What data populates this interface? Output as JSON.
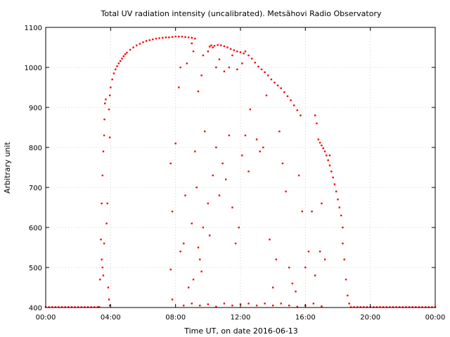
{
  "chart_data": {
    "type": "scatter",
    "title": "Total UV radiation intensity (uncalibrated). Metsähovi Radio Observatory",
    "xlabel": "Time UT, on date 2016-06-13",
    "ylabel": "Arbitrary unit",
    "xlim": [
      0,
      24
    ],
    "ylim": [
      400,
      1100
    ],
    "x_ticks": [
      {
        "value": 0,
        "label": "00:00"
      },
      {
        "value": 4,
        "label": "04:00"
      },
      {
        "value": 8,
        "label": "08:00"
      },
      {
        "value": 12,
        "label": "12:00"
      },
      {
        "value": 16,
        "label": "16:00"
      },
      {
        "value": 20,
        "label": "20:00"
      },
      {
        "value": 24,
        "label": "00:00"
      }
    ],
    "y_ticks": [
      {
        "value": 400,
        "label": "400"
      },
      {
        "value": 500,
        "label": "500"
      },
      {
        "value": 600,
        "label": "600"
      },
      {
        "value": 700,
        "label": "700"
      },
      {
        "value": 800,
        "label": "800"
      },
      {
        "value": 900,
        "label": "900"
      },
      {
        "value": 1000,
        "label": "1000"
      },
      {
        "value": 1100,
        "label": "1100"
      }
    ],
    "grid": true,
    "marker_color": "#ff0000",
    "series": [
      {
        "points": [
          [
            0.0,
            401
          ],
          [
            0.2,
            401
          ],
          [
            0.4,
            401
          ],
          [
            0.6,
            401
          ],
          [
            0.8,
            401
          ],
          [
            1.0,
            401
          ],
          [
            1.2,
            401
          ],
          [
            1.4,
            401
          ],
          [
            1.6,
            401
          ],
          [
            1.8,
            401
          ],
          [
            2.0,
            401
          ],
          [
            2.2,
            401
          ],
          [
            2.4,
            401
          ],
          [
            2.6,
            401
          ],
          [
            2.8,
            401
          ],
          [
            3.0,
            401
          ],
          [
            3.2,
            401
          ],
          [
            3.3,
            401
          ],
          [
            3.35,
            470
          ],
          [
            3.4,
            570
          ],
          [
            3.45,
            660
          ],
          [
            3.5,
            730
          ],
          [
            3.55,
            790
          ],
          [
            3.6,
            830
          ],
          [
            3.62,
            870
          ],
          [
            3.65,
            910
          ],
          [
            3.7,
            920
          ],
          [
            3.45,
            520
          ],
          [
            3.5,
            500
          ],
          [
            3.55,
            480
          ],
          [
            3.6,
            560
          ],
          [
            3.75,
            610
          ],
          [
            3.8,
            660
          ],
          [
            3.85,
            450
          ],
          [
            3.9,
            420
          ],
          [
            3.95,
            405
          ],
          [
            3.9,
            895
          ],
          [
            3.95,
            930
          ],
          [
            4.0,
            950
          ],
          [
            4.1,
            970
          ],
          [
            4.2,
            985
          ],
          [
            4.3,
            995
          ],
          [
            4.4,
            1003
          ],
          [
            4.5,
            1010
          ],
          [
            4.6,
            1016
          ],
          [
            4.7,
            1022
          ],
          [
            4.8,
            1028
          ],
          [
            4.9,
            1033
          ],
          [
            5.0,
            1037
          ],
          [
            5.2,
            1044
          ],
          [
            5.4,
            1050
          ],
          [
            5.6,
            1055
          ],
          [
            5.8,
            1059
          ],
          [
            6.0,
            1063
          ],
          [
            6.2,
            1066
          ],
          [
            6.4,
            1068
          ],
          [
            6.6,
            1070
          ],
          [
            6.8,
            1072
          ],
          [
            7.0,
            1073
          ],
          [
            7.2,
            1074
          ],
          [
            7.4,
            1075
          ],
          [
            7.6,
            1075
          ],
          [
            7.8,
            1076
          ],
          [
            8.0,
            1077
          ],
          [
            8.2,
            1077
          ],
          [
            8.4,
            1077
          ],
          [
            8.6,
            1076
          ],
          [
            8.8,
            1075
          ],
          [
            9.0,
            1074
          ],
          [
            9.2,
            1072
          ],
          [
            3.95,
            825
          ],
          [
            8.2,
            950
          ],
          [
            8.3,
            1000
          ],
          [
            8.7,
            1010
          ],
          [
            9.0,
            1060
          ],
          [
            9.1,
            1040
          ],
          [
            9.4,
            940
          ],
          [
            9.6,
            980
          ],
          [
            9.7,
            1030
          ],
          [
            7.7,
            760
          ],
          [
            7.8,
            640
          ],
          [
            7.7,
            495
          ],
          [
            7.8,
            420
          ],
          [
            8.0,
            810
          ],
          [
            8.3,
            540
          ],
          [
            8.5,
            560
          ],
          [
            8.6,
            680
          ],
          [
            8.8,
            450
          ],
          [
            9.0,
            610
          ],
          [
            9.1,
            470
          ],
          [
            9.2,
            790
          ],
          [
            9.3,
            700
          ],
          [
            9.4,
            550
          ],
          [
            9.5,
            520
          ],
          [
            9.6,
            490
          ],
          [
            9.7,
            600
          ],
          [
            10.0,
            1040
          ],
          [
            10.1,
            1052
          ],
          [
            10.2,
            1055
          ],
          [
            10.3,
            1050
          ],
          [
            10.4,
            1054
          ],
          [
            10.6,
            1056
          ],
          [
            10.8,
            1055
          ],
          [
            11.0,
            1053
          ],
          [
            11.2,
            1050
          ],
          [
            11.4,
            1046
          ],
          [
            11.6,
            1043
          ],
          [
            11.8,
            1040
          ],
          [
            12.0,
            1038
          ],
          [
            12.2,
            1035
          ],
          [
            10.5,
            1000
          ],
          [
            10.7,
            1020
          ],
          [
            11.0,
            990
          ],
          [
            11.3,
            1000
          ],
          [
            11.5,
            1030
          ],
          [
            11.8,
            995
          ],
          [
            12.1,
            1010
          ],
          [
            9.8,
            840
          ],
          [
            10.0,
            660
          ],
          [
            10.1,
            580
          ],
          [
            10.3,
            730
          ],
          [
            10.5,
            800
          ],
          [
            10.7,
            680
          ],
          [
            10.9,
            760
          ],
          [
            11.1,
            720
          ],
          [
            11.3,
            830
          ],
          [
            11.5,
            650
          ],
          [
            11.7,
            560
          ],
          [
            11.9,
            600
          ],
          [
            12.1,
            780
          ],
          [
            12.3,
            830
          ],
          [
            12.5,
            740
          ],
          [
            12.6,
            895
          ],
          [
            12.3,
            1040
          ],
          [
            12.5,
            1030
          ],
          [
            12.7,
            1022
          ],
          [
            12.9,
            1012
          ],
          [
            13.1,
            1002
          ],
          [
            13.3,
            995
          ],
          [
            13.5,
            988
          ],
          [
            13.7,
            980
          ],
          [
            13.9,
            970
          ],
          [
            14.1,
            962
          ],
          [
            14.3,
            955
          ],
          [
            14.5,
            948
          ],
          [
            14.7,
            938
          ],
          [
            14.9,
            928
          ],
          [
            15.1,
            918
          ],
          [
            15.3,
            905
          ],
          [
            15.5,
            893
          ],
          [
            15.7,
            880
          ],
          [
            13.0,
            820
          ],
          [
            13.2,
            790
          ],
          [
            13.4,
            800
          ],
          [
            13.6,
            930
          ],
          [
            13.8,
            570
          ],
          [
            14.0,
            450
          ],
          [
            14.2,
            520
          ],
          [
            14.4,
            840
          ],
          [
            14.6,
            760
          ],
          [
            14.8,
            690
          ],
          [
            15.0,
            500
          ],
          [
            15.2,
            460
          ],
          [
            15.4,
            440
          ],
          [
            15.6,
            730
          ],
          [
            15.8,
            640
          ],
          [
            16.0,
            500
          ],
          [
            16.2,
            540
          ],
          [
            16.8,
            820
          ],
          [
            16.9,
            812
          ],
          [
            17.0,
            805
          ],
          [
            17.1,
            798
          ],
          [
            17.2,
            790
          ],
          [
            17.3,
            780
          ],
          [
            17.4,
            768
          ],
          [
            17.5,
            755
          ],
          [
            17.6,
            740
          ],
          [
            17.7,
            725
          ],
          [
            17.8,
            708
          ],
          [
            17.9,
            690
          ],
          [
            18.0,
            670
          ],
          [
            18.1,
            650
          ],
          [
            18.2,
            630
          ],
          [
            18.3,
            600
          ],
          [
            16.6,
            880
          ],
          [
            16.7,
            860
          ],
          [
            16.9,
            540
          ],
          [
            17.0,
            660
          ],
          [
            17.2,
            520
          ],
          [
            17.5,
            780
          ],
          [
            18.3,
            560
          ],
          [
            18.4,
            520
          ],
          [
            18.5,
            470
          ],
          [
            18.6,
            430
          ],
          [
            18.7,
            410
          ],
          [
            16.4,
            640
          ],
          [
            16.6,
            480
          ],
          [
            12.5,
            410
          ],
          [
            13.0,
            405
          ],
          [
            13.5,
            410
          ],
          [
            14.0,
            405
          ],
          [
            14.5,
            410
          ],
          [
            15.0,
            405
          ],
          [
            15.5,
            402
          ],
          [
            16.0,
            405
          ],
          [
            16.5,
            410
          ],
          [
            17.0,
            403
          ],
          [
            8.5,
            405
          ],
          [
            9.0,
            410
          ],
          [
            9.5,
            405
          ],
          [
            10.0,
            408
          ],
          [
            10.5,
            402
          ],
          [
            11.0,
            410
          ],
          [
            11.5,
            405
          ],
          [
            12.0,
            408
          ],
          [
            18.8,
            401
          ],
          [
            19.0,
            401
          ],
          [
            19.2,
            401
          ],
          [
            19.4,
            401
          ],
          [
            19.6,
            401
          ],
          [
            19.8,
            401
          ],
          [
            20.0,
            401
          ],
          [
            20.2,
            401
          ],
          [
            20.4,
            401
          ],
          [
            20.6,
            401
          ],
          [
            20.8,
            401
          ],
          [
            21.0,
            401
          ],
          [
            21.2,
            401
          ],
          [
            21.4,
            401
          ],
          [
            21.6,
            401
          ],
          [
            21.8,
            401
          ],
          [
            22.0,
            401
          ],
          [
            22.2,
            401
          ],
          [
            22.4,
            401
          ],
          [
            22.6,
            401
          ],
          [
            22.8,
            401
          ],
          [
            23.0,
            401
          ],
          [
            23.2,
            401
          ],
          [
            23.4,
            401
          ],
          [
            23.6,
            401
          ],
          [
            23.8,
            401
          ],
          [
            24.0,
            401
          ]
        ]
      }
    ]
  }
}
